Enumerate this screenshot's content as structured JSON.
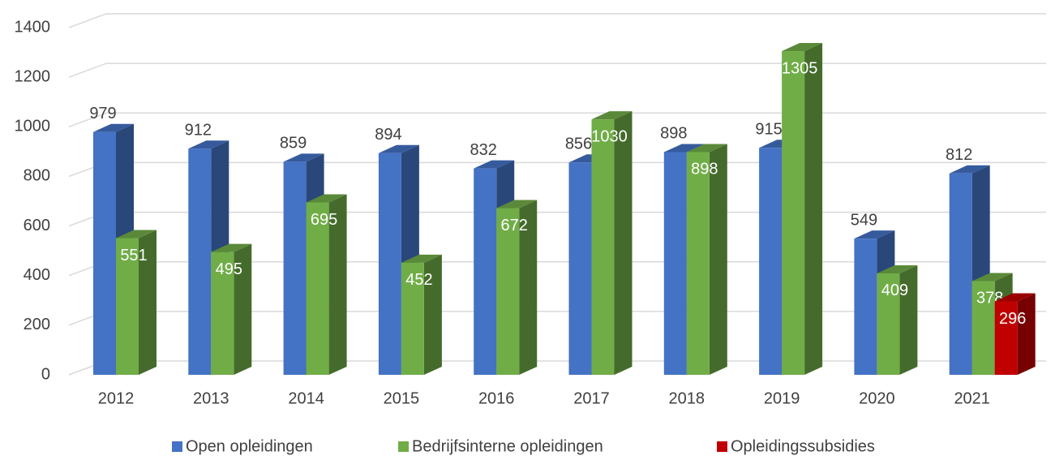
{
  "chart_data": {
    "type": "bar3d",
    "categories": [
      "2012",
      "2013",
      "2014",
      "2015",
      "2016",
      "2017",
      "2018",
      "2019",
      "2020",
      "2021"
    ],
    "series": [
      {
        "name": "Open opleidingen",
        "color": "#4472c4",
        "values": [
          979,
          912,
          859,
          894,
          832,
          856,
          898,
          915,
          549,
          812
        ]
      },
      {
        "name": "Bedrijfsinterne opleidingen",
        "color": "#70ad47",
        "values": [
          551,
          495,
          695,
          452,
          672,
          1030,
          898,
          1305,
          409,
          378
        ]
      },
      {
        "name": "Opleidingssubsidies",
        "color": "#c00000",
        "values": [
          null,
          null,
          null,
          null,
          null,
          null,
          null,
          null,
          null,
          296
        ]
      }
    ],
    "ylim": [
      0,
      1400
    ],
    "yticks": [
      0,
      200,
      400,
      600,
      800,
      1000,
      1200,
      1400
    ],
    "grid": true,
    "legend": "bottom"
  }
}
